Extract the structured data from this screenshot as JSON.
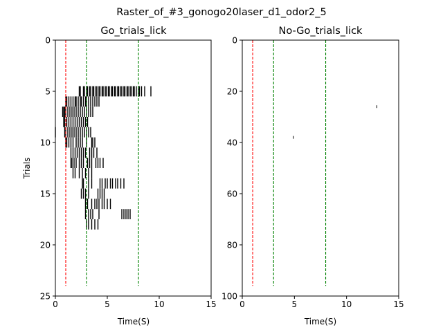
{
  "suptitle": "Raster_of_#3_gonogo20laser_d1_odor2_5",
  "colors": {
    "lick": "#000000",
    "odor_line": "#ff0000",
    "window_line": "#008000",
    "axis": "#000000"
  },
  "chart_data": [
    {
      "type": "raster",
      "title": "Go_trials_lick",
      "xlabel": "Time(S)",
      "ylabel": "Trials",
      "xlim": [
        0,
        15
      ],
      "ylim": [
        25,
        0
      ],
      "xticks": [
        0,
        5,
        10,
        15
      ],
      "yticks": [
        0,
        5,
        10,
        15,
        20,
        25
      ],
      "grid": false,
      "event_lines": [
        {
          "x": 1.0,
          "color": "red",
          "style": "dashed",
          "y_range": [
            0,
            24
          ]
        },
        {
          "x": 3.0,
          "color": "green",
          "style": "dashed",
          "y_range": [
            0,
            24
          ]
        },
        {
          "x": 8.0,
          "color": "green",
          "style": "dashed",
          "y_range": [
            0,
            24
          ]
        }
      ],
      "trials": [
        {
          "trial": 5,
          "licks": [
            2.3,
            2.4,
            2.7,
            2.8,
            3.0,
            3.1,
            3.3,
            3.4,
            3.6,
            3.7,
            3.9,
            4.0,
            4.2,
            4.3,
            4.5,
            4.6,
            4.8,
            4.9,
            5.1,
            5.2,
            5.4,
            5.5,
            5.7,
            5.8,
            6.0,
            6.1,
            6.3,
            6.4,
            6.6,
            6.7,
            6.9,
            7.0,
            7.2,
            7.3,
            7.5,
            7.6,
            7.8,
            8.0,
            8.1,
            8.3,
            8.6,
            9.2
          ]
        },
        {
          "trial": 6,
          "licks": [
            1.0,
            1.1,
            1.3,
            1.5,
            1.7,
            1.9,
            2.0,
            2.2,
            2.4,
            2.5,
            2.7,
            2.9,
            3.0,
            3.2,
            3.4,
            3.6,
            3.8,
            4.0,
            4.2
          ]
        },
        {
          "trial": 7,
          "licks": [
            0.7,
            0.8,
            0.9,
            1.0,
            1.2,
            1.4,
            1.6,
            1.8,
            2.0,
            2.2,
            2.4,
            2.6,
            2.8,
            3.0,
            3.2,
            3.4,
            3.6
          ]
        },
        {
          "trial": 8,
          "licks": [
            0.8,
            0.9,
            1.1,
            1.3,
            1.5,
            1.7,
            1.9,
            2.1,
            2.3,
            2.5,
            2.7,
            2.9,
            3.1
          ]
        },
        {
          "trial": 9,
          "licks": [
            0.0,
            0.9,
            1.0,
            1.2,
            1.4,
            1.6,
            1.8,
            2.0,
            2.2,
            2.4,
            2.6,
            2.8,
            3.0,
            3.2,
            3.4
          ]
        },
        {
          "trial": 10,
          "licks": [
            1.0,
            1.1,
            1.3,
            1.5,
            1.7,
            2.0,
            2.2,
            2.4,
            2.6,
            3.0,
            3.5,
            3.6,
            3.8
          ]
        },
        {
          "trial": 11,
          "licks": [
            1.5,
            1.7,
            1.9,
            2.1,
            2.3,
            2.5,
            2.7,
            2.9,
            3.3,
            3.5,
            3.7,
            4.0
          ]
        },
        {
          "trial": 12,
          "licks": [
            1.5,
            1.6,
            1.8,
            2.0,
            2.3,
            2.5,
            2.7,
            3.1,
            3.3,
            3.5,
            3.9,
            4.1,
            4.3,
            4.6
          ]
        },
        {
          "trial": 13,
          "licks": [
            1.7,
            1.9,
            2.3,
            2.6,
            2.9,
            3.2,
            3.5
          ]
        },
        {
          "trial": 14,
          "licks": [
            2.6,
            2.7,
            3.2,
            3.5,
            4.3,
            4.5,
            4.8,
            5.0,
            5.3,
            5.5,
            5.8,
            6.0,
            6.3,
            6.6
          ]
        },
        {
          "trial": 15,
          "licks": [
            2.5,
            2.7,
            2.9,
            3.2,
            4.1,
            4.3,
            4.5,
            4.7
          ]
        },
        {
          "trial": 16,
          "licks": [
            2.9,
            3.1,
            3.5,
            3.8,
            4.0,
            4.2,
            4.5,
            4.7,
            5.0,
            5.3
          ]
        },
        {
          "trial": 17,
          "licks": [
            2.9,
            3.2,
            3.4,
            3.6,
            4.2,
            6.4,
            6.6,
            6.8,
            7.0,
            7.2
          ]
        },
        {
          "trial": 18,
          "licks": [
            3.0,
            3.2,
            3.5,
            3.8,
            4.1
          ]
        }
      ]
    },
    {
      "type": "raster",
      "title": "No-Go_trials_lick",
      "xlabel": "Time(S)",
      "ylabel": "",
      "xlim": [
        0,
        15
      ],
      "ylim": [
        100,
        0
      ],
      "xticks": [
        0,
        5,
        10,
        15
      ],
      "yticks": [
        0,
        20,
        40,
        60,
        80,
        100
      ],
      "grid": false,
      "event_lines": [
        {
          "x": 1.0,
          "color": "red",
          "style": "dashed",
          "y_range": [
            0,
            96
          ]
        },
        {
          "x": 3.0,
          "color": "green",
          "style": "dashed",
          "y_range": [
            0,
            96
          ]
        },
        {
          "x": 8.0,
          "color": "green",
          "style": "dashed",
          "y_range": [
            0,
            96
          ]
        }
      ],
      "trials": [
        {
          "trial": 26,
          "licks": [
            12.9
          ]
        },
        {
          "trial": 38,
          "licks": [
            4.9
          ]
        }
      ]
    }
  ]
}
